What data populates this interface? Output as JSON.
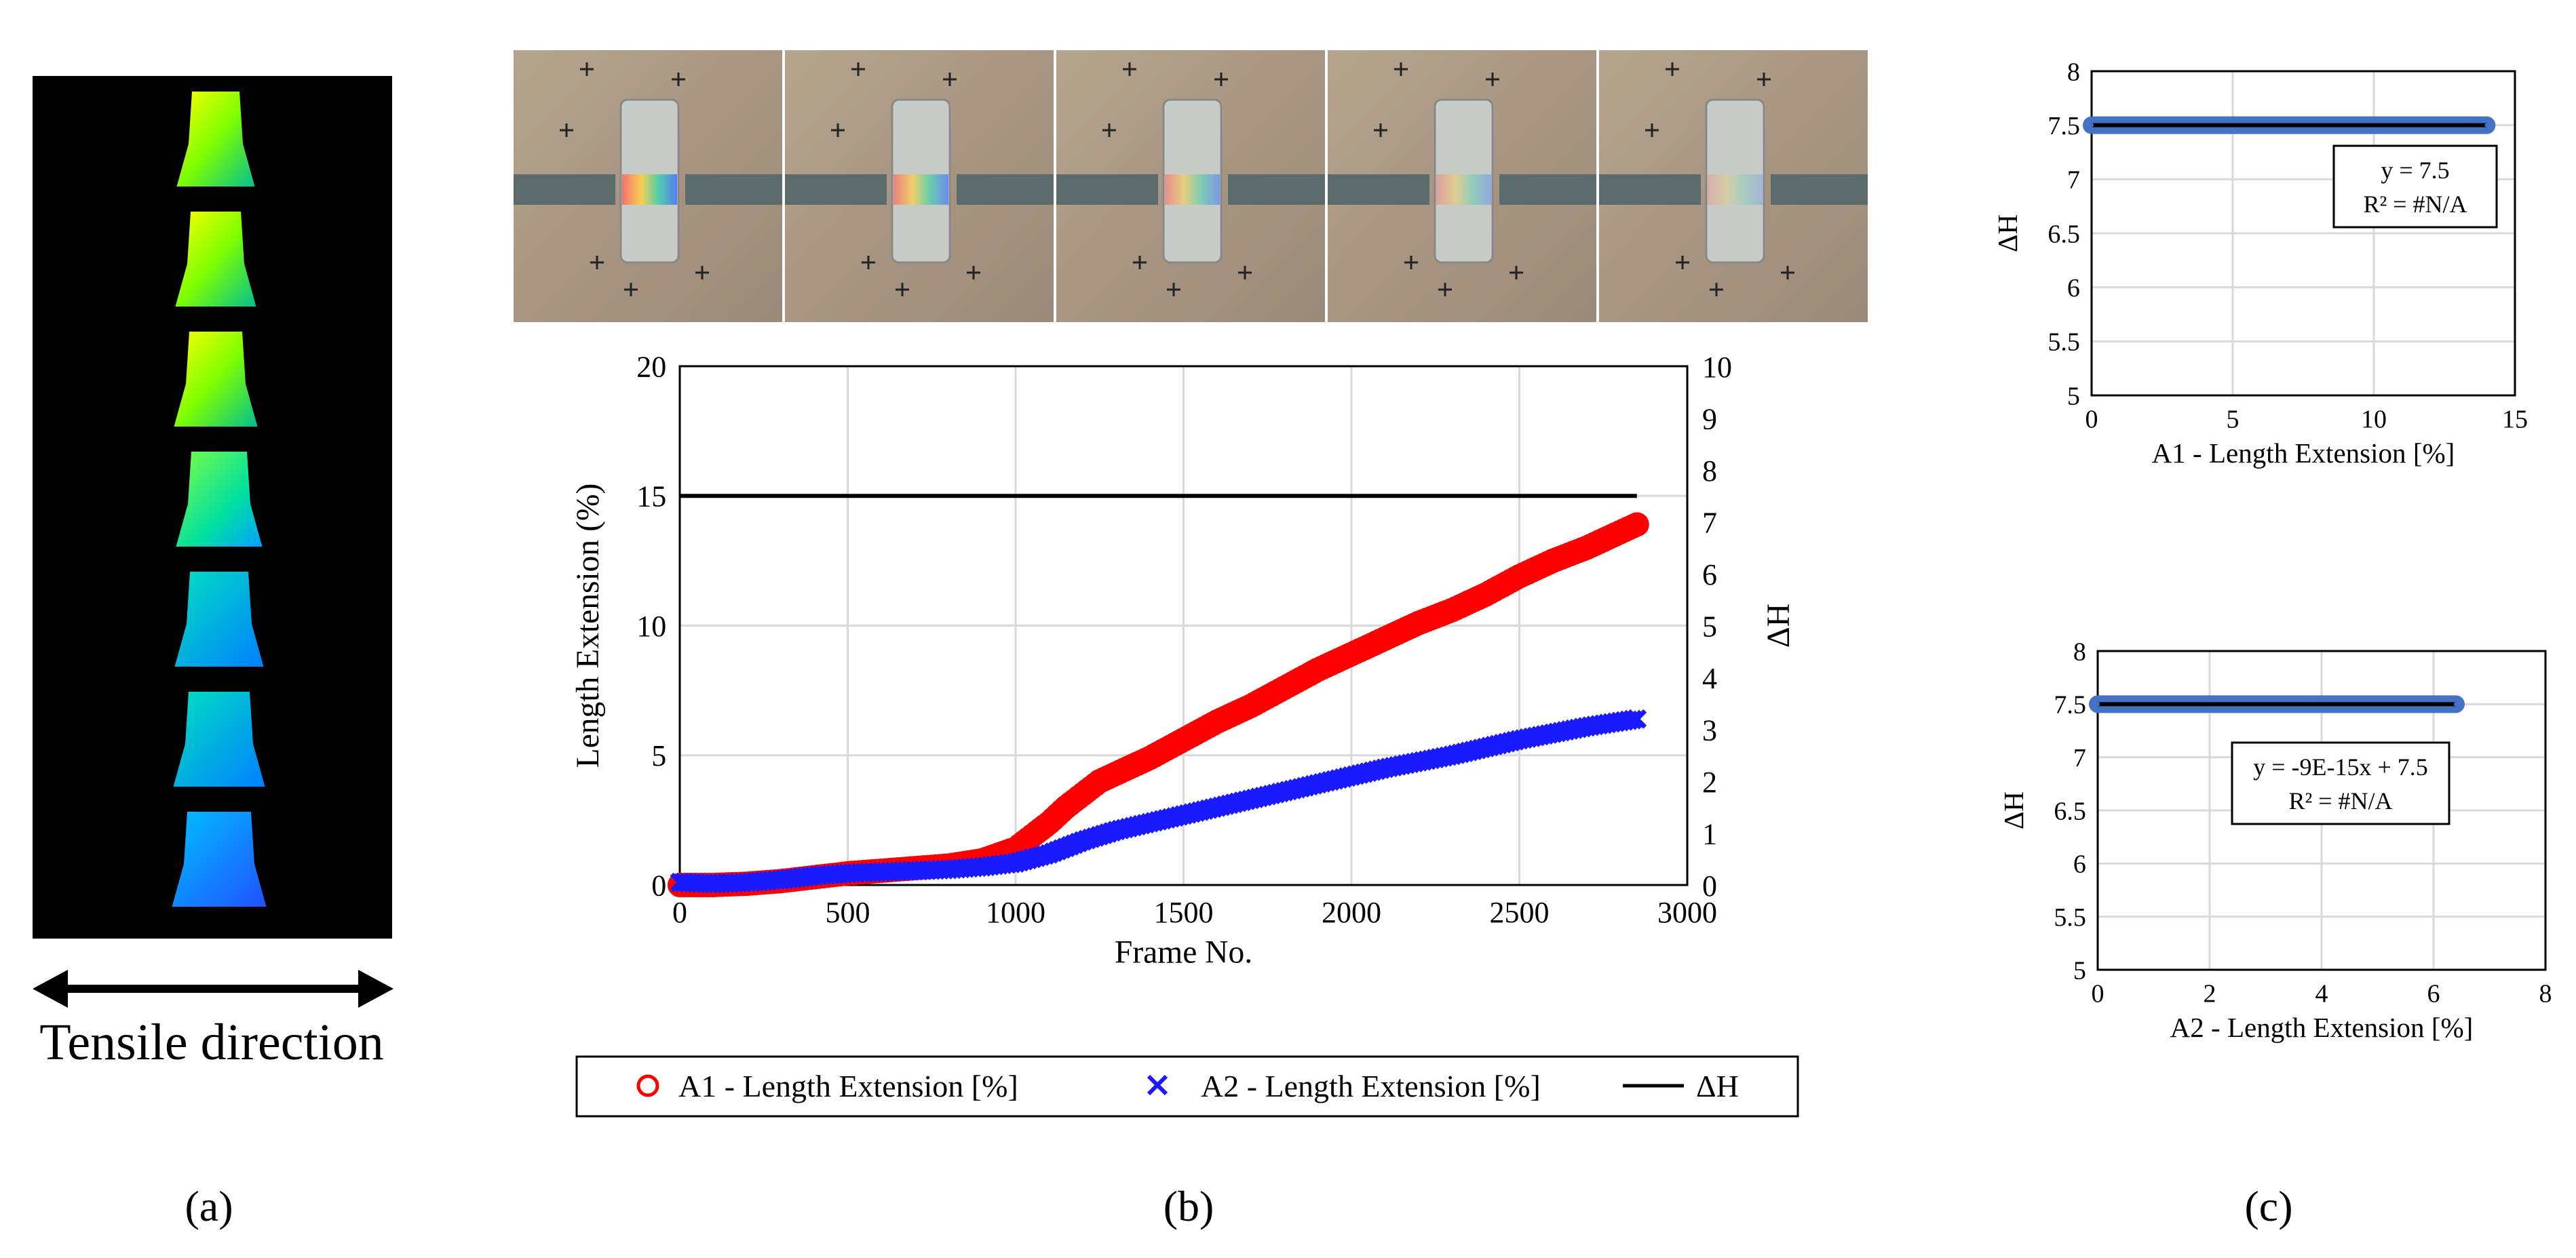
{
  "panel_labels": {
    "a": "(a)",
    "b": "(b)",
    "c": "(c)"
  },
  "panel_a": {
    "caption": "Tensile direction",
    "frames": 7
  },
  "panel_b_photos": {
    "count": 5
  },
  "chart_data": [
    {
      "type": "line",
      "id": "main",
      "xlabel": "Frame No.",
      "ylabel": "Length Extension (%)",
      "y2label": "ΔH",
      "xlim": [
        0,
        3000
      ],
      "ylim": [
        0,
        20
      ],
      "y2lim": [
        0,
        10
      ],
      "xticks": [
        "0",
        "500",
        "1000",
        "1500",
        "2000",
        "2500",
        "3000"
      ],
      "yticks": [
        "0",
        "5",
        "10",
        "15",
        "20"
      ],
      "y2ticks": [
        "0",
        "1",
        "2",
        "3",
        "4",
        "5",
        "6",
        "7",
        "8",
        "9",
        "10"
      ],
      "grid": true,
      "legend_position": "bottom",
      "series": [
        {
          "name": "A1 - Length Extension [%]",
          "axis": "left",
          "marker": "circle",
          "color": "#ff0000",
          "points": [
            [
              0,
              0
            ],
            [
              100,
              0
            ],
            [
              200,
              0.05
            ],
            [
              300,
              0.15
            ],
            [
              400,
              0.3
            ],
            [
              500,
              0.45
            ],
            [
              600,
              0.55
            ],
            [
              700,
              0.65
            ],
            [
              800,
              0.75
            ],
            [
              900,
              0.95
            ],
            [
              1000,
              1.4
            ],
            [
              1050,
              1.9
            ],
            [
              1100,
              2.4
            ],
            [
              1150,
              3
            ],
            [
              1200,
              3.5
            ],
            [
              1250,
              4
            ],
            [
              1300,
              4.3
            ],
            [
              1400,
              4.9
            ],
            [
              1500,
              5.6
            ],
            [
              1600,
              6.3
            ],
            [
              1700,
              6.9
            ],
            [
              1800,
              7.6
            ],
            [
              1900,
              8.3
            ],
            [
              2000,
              8.9
            ],
            [
              2100,
              9.5
            ],
            [
              2200,
              10.1
            ],
            [
              2300,
              10.6
            ],
            [
              2400,
              11.2
            ],
            [
              2500,
              11.9
            ],
            [
              2600,
              12.5
            ],
            [
              2700,
              13.0
            ],
            [
              2800,
              13.6
            ],
            [
              2850,
              13.9
            ]
          ]
        },
        {
          "name": "A2 - Length Extension [%]",
          "axis": "left",
          "marker": "x",
          "color": "#1a1aff",
          "points": [
            [
              0,
              0.1
            ],
            [
              100,
              0.05
            ],
            [
              200,
              0.1
            ],
            [
              300,
              0.2
            ],
            [
              400,
              0.35
            ],
            [
              500,
              0.45
            ],
            [
              600,
              0.5
            ],
            [
              700,
              0.55
            ],
            [
              800,
              0.6
            ],
            [
              900,
              0.7
            ],
            [
              1000,
              0.85
            ],
            [
              1100,
              1.2
            ],
            [
              1200,
              1.7
            ],
            [
              1300,
              2.1
            ],
            [
              1400,
              2.4
            ],
            [
              1500,
              2.7
            ],
            [
              1600,
              3.0
            ],
            [
              1700,
              3.3
            ],
            [
              1800,
              3.6
            ],
            [
              1900,
              3.9
            ],
            [
              2000,
              4.2
            ],
            [
              2100,
              4.5
            ],
            [
              2200,
              4.75
            ],
            [
              2300,
              5.0
            ],
            [
              2400,
              5.3
            ],
            [
              2500,
              5.6
            ],
            [
              2600,
              5.85
            ],
            [
              2700,
              6.1
            ],
            [
              2800,
              6.3
            ],
            [
              2850,
              6.4
            ]
          ]
        },
        {
          "name": "ΔH",
          "axis": "right",
          "marker": "none",
          "color": "#000000",
          "points": [
            [
              0,
              7.5
            ],
            [
              2850,
              7.5
            ]
          ]
        }
      ]
    },
    {
      "type": "scatter",
      "id": "c1",
      "xlabel": "A1 - Length Extension [%]",
      "ylabel": "ΔH",
      "xlim": [
        0,
        15
      ],
      "ylim": [
        5,
        8
      ],
      "xticks": [
        "0",
        "5",
        "10",
        "15"
      ],
      "yticks": [
        "5",
        "5.5",
        "6",
        "6.5",
        "7",
        "7.5",
        "8"
      ],
      "grid": true,
      "equation": "y = 7.5",
      "r2": "R² = #N/A",
      "series": [
        {
          "color": "#4472c4",
          "points": [
            [
              0,
              7.5
            ],
            [
              14,
              7.5
            ]
          ]
        }
      ]
    },
    {
      "type": "scatter",
      "id": "c2",
      "xlabel": "A2 - Length Extension [%]",
      "ylabel": "ΔH",
      "xlim": [
        0,
        8
      ],
      "ylim": [
        5,
        8
      ],
      "xticks": [
        "0",
        "2",
        "4",
        "6",
        "8"
      ],
      "yticks": [
        "5",
        "5.5",
        "6",
        "6.5",
        "7",
        "7.5",
        "8"
      ],
      "grid": true,
      "equation": "y = -9E-15x + 7.5",
      "r2": "R² = #N/A",
      "series": [
        {
          "color": "#4472c4",
          "points": [
            [
              0,
              7.5
            ],
            [
              6.4,
              7.5
            ]
          ]
        }
      ]
    }
  ]
}
